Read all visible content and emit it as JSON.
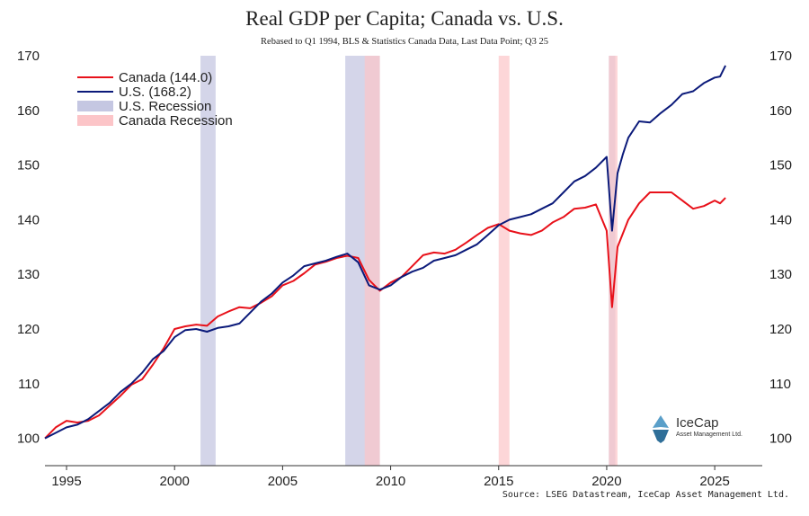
{
  "chart_data": {
    "type": "line",
    "title": "Real GDP per Capita; Canada vs. U.S.",
    "subtitle": "Rebased to Q1 1994, BLS & Statistics Canada Data, Last Data Point; Q3 25",
    "source": "Source: LSEG Datastream, IceCap Asset Management Ltd.",
    "xlim": [
      1994,
      2027.2
    ],
    "ylim": [
      95,
      170
    ],
    "x_ticks": [
      1995,
      2000,
      2005,
      2010,
      2015,
      2020,
      2025
    ],
    "y_ticks": [
      100,
      110,
      120,
      130,
      140,
      150,
      160,
      170
    ],
    "legend": [
      {
        "label": "Canada (144.0)",
        "kind": "line",
        "color": "#e8111a"
      },
      {
        "label": "U.S. (168.2)",
        "kind": "line",
        "color": "#0b1a7a"
      },
      {
        "label": "U.S. Recession",
        "kind": "band",
        "color": "#c5c7e2"
      },
      {
        "label": "Canada Recession",
        "kind": "band",
        "color": "#fcc5c8"
      }
    ],
    "recessions": {
      "us": [
        [
          2001.2,
          2001.9
        ],
        [
          2007.9,
          2009.5
        ],
        [
          2020.1,
          2020.4
        ]
      ],
      "canada": [
        [
          2008.8,
          2009.5
        ],
        [
          2015.0,
          2015.5
        ],
        [
          2020.1,
          2020.5
        ]
      ]
    },
    "series": [
      {
        "name": "Canada (144.0)",
        "color": "#e8111a",
        "x": [
          1994.0,
          1994.5,
          1995.0,
          1995.5,
          1996.0,
          1996.5,
          1997.0,
          1997.5,
          1998.0,
          1998.5,
          1999.0,
          1999.5,
          2000.0,
          2000.5,
          2001.0,
          2001.5,
          2002.0,
          2002.5,
          2003.0,
          2003.5,
          2004.0,
          2004.5,
          2005.0,
          2005.5,
          2006.0,
          2006.5,
          2007.0,
          2007.5,
          2008.0,
          2008.5,
          2009.0,
          2009.5,
          2010.0,
          2010.5,
          2011.0,
          2011.5,
          2012.0,
          2012.5,
          2013.0,
          2013.5,
          2014.0,
          2014.5,
          2015.0,
          2015.5,
          2016.0,
          2016.5,
          2017.0,
          2017.5,
          2018.0,
          2018.5,
          2019.0,
          2019.5,
          2020.0,
          2020.25,
          2020.5,
          2020.75,
          2021.0,
          2021.5,
          2022.0,
          2022.5,
          2023.0,
          2023.5,
          2024.0,
          2024.5,
          2025.0,
          2025.25,
          2025.5
        ],
        "values": [
          100.0,
          102.0,
          103.2,
          102.9,
          103.2,
          104.2,
          106.0,
          107.8,
          109.8,
          110.8,
          113.5,
          116.5,
          120.0,
          120.5,
          120.8,
          120.6,
          122.3,
          123.2,
          124.0,
          123.8,
          124.8,
          126.0,
          128.0,
          128.8,
          130.2,
          131.8,
          132.3,
          133.0,
          133.4,
          133.0,
          129.0,
          127.0,
          128.5,
          129.5,
          131.5,
          133.5,
          134.0,
          133.8,
          134.5,
          135.8,
          137.2,
          138.5,
          139.2,
          138.0,
          137.5,
          137.2,
          138.0,
          139.5,
          140.5,
          142.0,
          142.2,
          142.8,
          138.0,
          124.0,
          135.0,
          137.5,
          140.0,
          143.0,
          145.0,
          145.0,
          145.0,
          143.5,
          142.0,
          142.5,
          143.5,
          143.0,
          144.0
        ]
      },
      {
        "name": "U.S. (168.2)",
        "color": "#0b1a7a",
        "x": [
          1994.0,
          1994.5,
          1995.0,
          1995.5,
          1996.0,
          1996.5,
          1997.0,
          1997.5,
          1998.0,
          1998.5,
          1999.0,
          1999.5,
          2000.0,
          2000.5,
          2001.0,
          2001.5,
          2002.0,
          2002.5,
          2003.0,
          2003.5,
          2004.0,
          2004.5,
          2005.0,
          2005.5,
          2006.0,
          2006.5,
          2007.0,
          2007.5,
          2008.0,
          2008.5,
          2009.0,
          2009.5,
          2010.0,
          2010.5,
          2011.0,
          2011.5,
          2012.0,
          2012.5,
          2013.0,
          2013.5,
          2014.0,
          2014.5,
          2015.0,
          2015.5,
          2016.0,
          2016.5,
          2017.0,
          2017.5,
          2018.0,
          2018.5,
          2019.0,
          2019.5,
          2020.0,
          2020.25,
          2020.5,
          2020.75,
          2021.0,
          2021.5,
          2022.0,
          2022.5,
          2023.0,
          2023.5,
          2024.0,
          2024.5,
          2025.0,
          2025.25,
          2025.5
        ],
        "values": [
          100.0,
          101.0,
          102.0,
          102.5,
          103.5,
          105.0,
          106.5,
          108.5,
          110.0,
          112.0,
          114.5,
          116.0,
          118.5,
          119.8,
          120.0,
          119.5,
          120.2,
          120.5,
          121.0,
          123.0,
          125.0,
          126.5,
          128.5,
          129.8,
          131.5,
          132.0,
          132.5,
          133.2,
          133.8,
          132.2,
          128.0,
          127.2,
          128.0,
          129.5,
          130.5,
          131.2,
          132.5,
          133.0,
          133.5,
          134.5,
          135.5,
          137.2,
          139.0,
          140.0,
          140.5,
          141.0,
          142.0,
          143.0,
          145.0,
          147.0,
          148.0,
          149.5,
          151.5,
          138.0,
          148.5,
          152.0,
          155.0,
          158.0,
          157.8,
          159.5,
          161.0,
          163.0,
          163.5,
          165.0,
          166.0,
          166.2,
          168.2
        ]
      }
    ]
  },
  "logo": {
    "name": "IceCap",
    "tagline": "Asset Management Ltd."
  }
}
